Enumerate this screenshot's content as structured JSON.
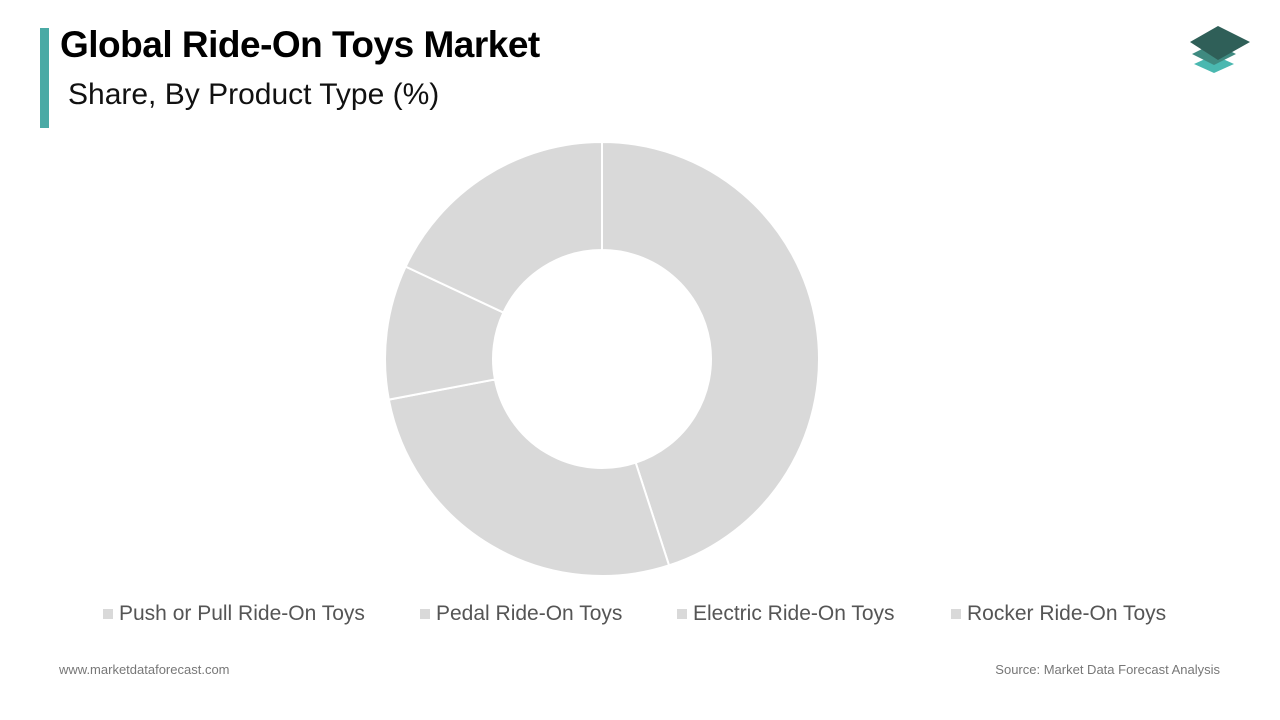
{
  "header": {
    "title": "Global Ride-On Toys Market",
    "subtitle": "Share, By Product Type (%)"
  },
  "logo": {
    "icon": "stacked-layers-icon",
    "colors": [
      "#2f5f58",
      "#3f8a80",
      "#4ab8b0"
    ]
  },
  "chart_data": {
    "type": "pie",
    "donut": true,
    "title": "Global Ride-On Toys Market",
    "subtitle": "Share, By Product Type (%)",
    "categories": [
      "Push or Pull Ride-On Toys",
      "Pedal Ride-On Toys",
      "Electric Ride-On Toys",
      "Rocker Ride-On Toys"
    ],
    "values": [
      45,
      27,
      10,
      18
    ],
    "colors": [
      "#d9d9d9",
      "#d9d9d9",
      "#d9d9d9",
      "#d9d9d9"
    ],
    "legend_position": "bottom"
  },
  "footer": {
    "website": "www.marketdataforecast.com",
    "source": "Source: Market Data Forecast Analysis"
  },
  "colors": {
    "accent": "#4aaaa5",
    "slice": "#d9d9d9",
    "legend_text": "#555555"
  }
}
